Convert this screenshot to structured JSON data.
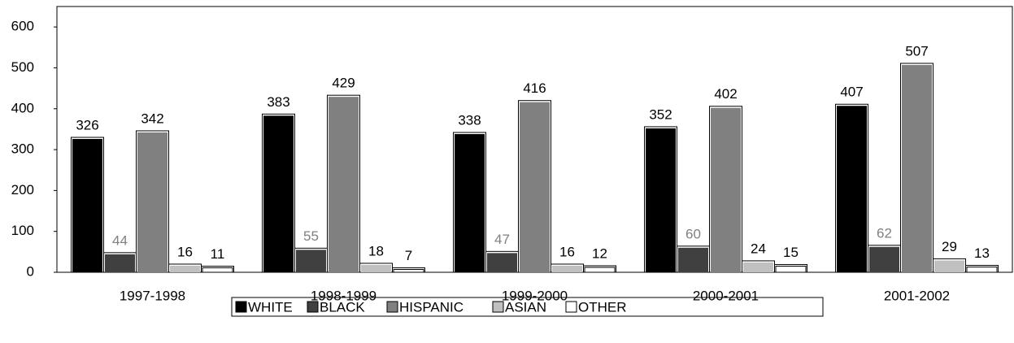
{
  "chart_data": {
    "type": "bar",
    "categories": [
      "1997-1998",
      "1998-1999",
      "1999-2000",
      "2000-2001",
      "2001-2002"
    ],
    "series": [
      {
        "name": "WHITE",
        "color": "#000000",
        "values": [
          326,
          383,
          338,
          352,
          407
        ]
      },
      {
        "name": "BLACK",
        "color": "#404040",
        "values": [
          44,
          55,
          47,
          60,
          62
        ]
      },
      {
        "name": "HISPANIC",
        "color": "#808080",
        "values": [
          342,
          429,
          416,
          402,
          507
        ]
      },
      {
        "name": "ASIAN",
        "color": "#c0c0c0",
        "values": [
          16,
          18,
          16,
          24,
          29
        ]
      },
      {
        "name": "OTHER",
        "color": "#ffffff",
        "values": [
          11,
          7,
          12,
          15,
          13
        ]
      }
    ],
    "ylim": [
      0,
      650
    ],
    "yticks": [
      0,
      100,
      200,
      300,
      400,
      500,
      600
    ],
    "legend": "bottom"
  }
}
